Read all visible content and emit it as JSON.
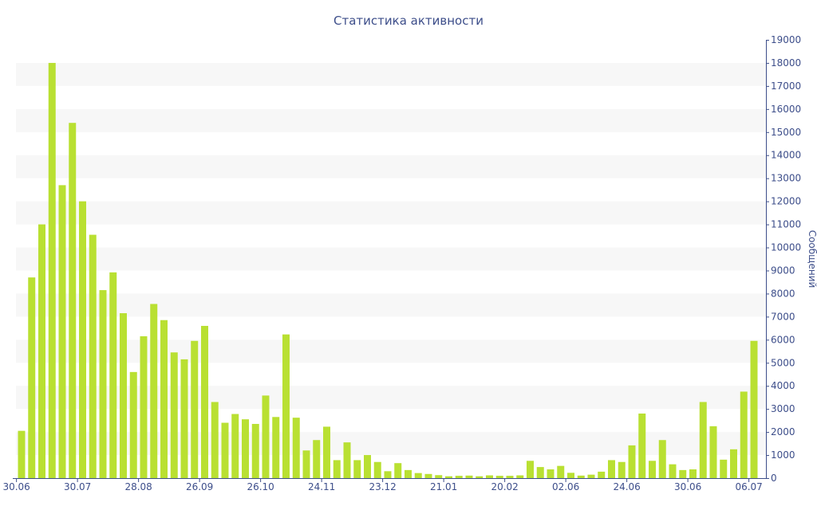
{
  "colors": {
    "bar": "#b9e032",
    "text": "#3d4e8a",
    "band": "#f7f7f7",
    "axis": "#3d4e8a"
  },
  "chart_data": {
    "type": "bar",
    "title": "Статистика активности",
    "xlabel": "",
    "ylabel": "Сообщений",
    "ylim": [
      0,
      19000
    ],
    "y_ticks": [
      0,
      1000,
      2000,
      3000,
      4000,
      5000,
      6000,
      7000,
      8000,
      9000,
      10000,
      11000,
      12000,
      13000,
      14000,
      15000,
      16000,
      17000,
      18000,
      19000
    ],
    "y_axis_side": "right",
    "grid": "alternating horizontal bands",
    "x_tick_labels": [
      {
        "label": "30.06",
        "index": 0
      },
      {
        "label": "30.07",
        "index": 6
      },
      {
        "label": "28.08",
        "index": 12
      },
      {
        "label": "26.09",
        "index": 18
      },
      {
        "label": "26.10",
        "index": 24
      },
      {
        "label": "24.11",
        "index": 30
      },
      {
        "label": "23.12",
        "index": 36
      },
      {
        "label": "21.01",
        "index": 42
      },
      {
        "label": "20.02",
        "index": 48
      },
      {
        "label": "02.06",
        "index": 54
      },
      {
        "label": "24.06",
        "index": 60
      },
      {
        "label": "30.06",
        "index": 66
      },
      {
        "label": "06.07",
        "index": 72
      }
    ],
    "values": [
      2050,
      8700,
      11000,
      18000,
      12700,
      15400,
      12000,
      10550,
      8150,
      8920,
      7150,
      4600,
      6150,
      7550,
      6850,
      5450,
      5150,
      5950,
      6600,
      3300,
      2400,
      2780,
      2550,
      2350,
      3580,
      2650,
      6230,
      2620,
      1200,
      1650,
      2230,
      780,
      1550,
      780,
      1000,
      700,
      300,
      650,
      350,
      220,
      180,
      130,
      80,
      100,
      110,
      80,
      120,
      100,
      100,
      120,
      750,
      480,
      380,
      530,
      230,
      110,
      150,
      280,
      780,
      700,
      1420,
      2800,
      750,
      1650,
      600,
      350,
      380,
      3300,
      2250,
      800,
      1250,
      3750,
      5950
    ]
  }
}
